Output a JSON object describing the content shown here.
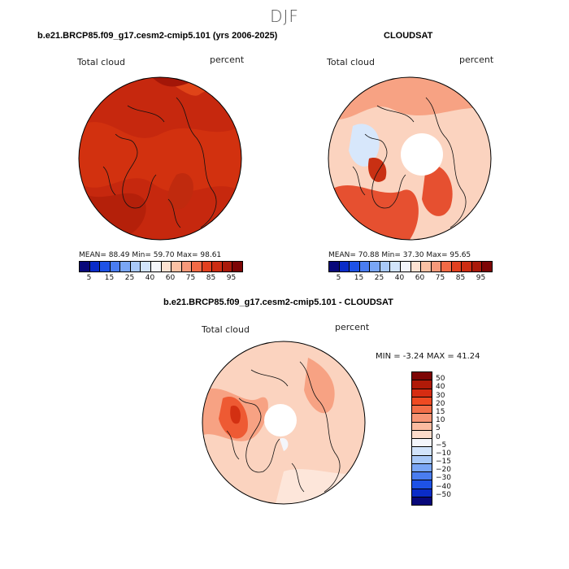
{
  "season": "DJF",
  "panels": {
    "model": {
      "title": "b.e21.BRCP85.f09_g17.cesm2-cmip5.101 (yrs 2006-2025)",
      "field_label": "Total cloud",
      "units_label": "percent",
      "stats": "MEAN=  88.49   Min=  59.70   Max=  98.61"
    },
    "obs": {
      "title": "CLOUDSAT",
      "field_label": "Total cloud",
      "units_label": "percent",
      "stats": "MEAN=  70.88   Min=  37.30   Max=  95.65"
    },
    "diff": {
      "title": "b.e21.BRCP85.f09_g17.cesm2-cmip5.101 - CLOUDSAT",
      "field_label": "Total cloud",
      "units_label": "percent",
      "stats": "MIN =   -3.24  MAX =  41.24"
    }
  },
  "colorbar_abs": {
    "ticks": [
      "5",
      "15",
      "25",
      "40",
      "60",
      "75",
      "85",
      "95"
    ],
    "colors": [
      "#08087a",
      "#0a2cc8",
      "#1e52e6",
      "#4a7df0",
      "#7aa6f5",
      "#a9c9f8",
      "#d2e4fb",
      "#f4f6fb",
      "#fde2d2",
      "#fbc1a4",
      "#f7997a",
      "#f26a46",
      "#e2401f",
      "#cd2c12",
      "#aa1a0a",
      "#7d0505"
    ]
  },
  "colorbar_diff": {
    "levels": [
      "50",
      "40",
      "30",
      "20",
      "15",
      "10",
      "5",
      "0",
      "−5",
      "−10",
      "−15",
      "−20",
      "−30",
      "−40",
      "−50"
    ],
    "colors": [
      "#7d0505",
      "#b01a08",
      "#d62c12",
      "#ee4a22",
      "#f26e48",
      "#f79575",
      "#fbbba0",
      "#fddccb",
      "#f4f6fb",
      "#d2e4fb",
      "#a9c9f8",
      "#7aa6f5",
      "#4a7df0",
      "#1e52e6",
      "#0a2cc8",
      "#08087a"
    ]
  },
  "map_fields": {
    "model": [
      "#c6280e",
      "#d2310f",
      "#b4200a",
      "#e04418",
      "#c02a0e",
      "#a31608"
    ],
    "obs": [
      "#fbd3bf",
      "#f7a283",
      "#e65030",
      "#f4f6fb",
      "#d7e7fb",
      "#c93013"
    ],
    "diff": [
      "#fbd3bf",
      "#f7a283",
      "#ee5a33",
      "#fde6da",
      "#d33012",
      "#f4f6fb"
    ]
  }
}
